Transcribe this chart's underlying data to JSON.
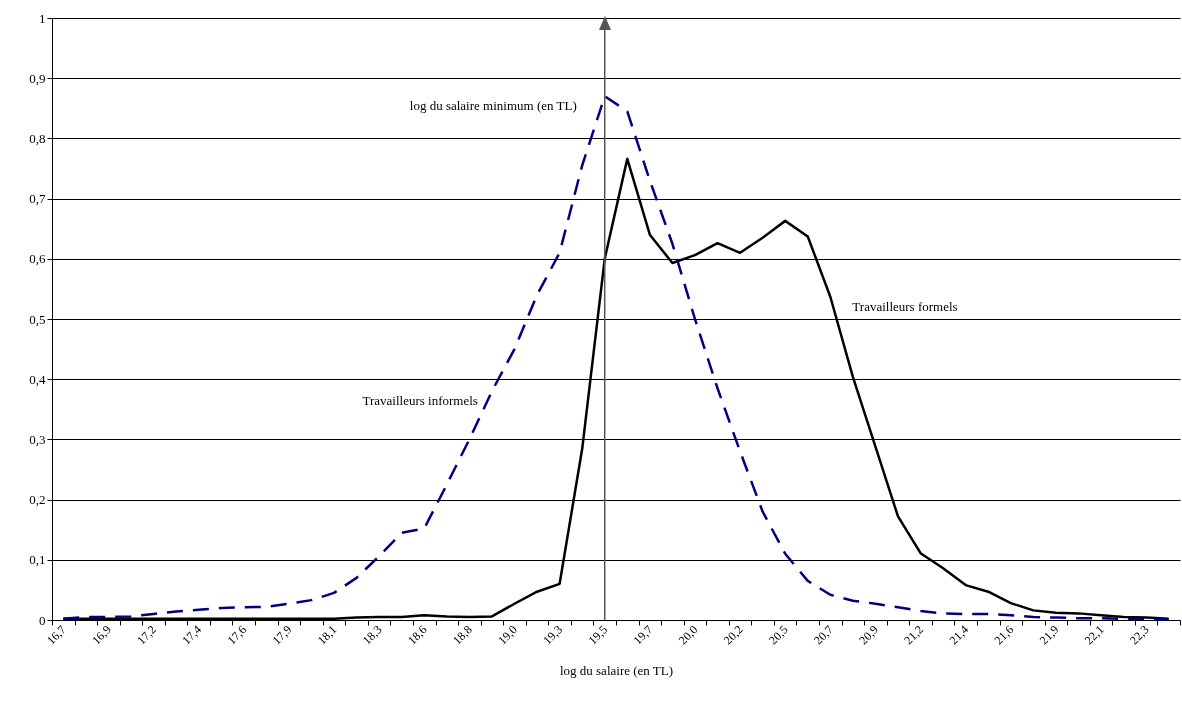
{
  "chart_data": {
    "type": "line",
    "xlabel": "log du salaire (en TL)",
    "categories": [
      "16,7",
      null,
      "16,9",
      null,
      "17,2",
      null,
      "17,4",
      null,
      "17,6",
      null,
      "17,9",
      null,
      "18,1",
      null,
      "18,3",
      null,
      "18,6",
      null,
      "18,8",
      null,
      "19,0",
      null,
      "19,3",
      null,
      "19,5",
      null,
      "19,7",
      null,
      "20,0",
      null,
      "20,2",
      null,
      "20,5",
      null,
      "20,7",
      null,
      "20,9",
      null,
      "21,2",
      null,
      "21,4",
      null,
      "21,6",
      null,
      "21,9",
      null,
      "22,1",
      null,
      "22,3",
      null
    ],
    "series": [
      {
        "name": "Travailleurs formels",
        "color": "#000000",
        "line_style": "solid",
        "values": [
          0.002,
          0.002,
          0.002,
          0.002,
          0.002,
          0.002,
          0.002,
          0.002,
          0.002,
          0.002,
          0.002,
          0.002,
          0.002,
          0.004,
          0.005,
          0.005,
          0.008,
          0.006,
          0.005,
          0.006,
          0.027,
          0.047,
          0.06,
          0.284,
          0.6,
          0.766,
          0.64,
          0.593,
          0.606,
          0.626,
          0.61,
          0.635,
          0.663,
          0.637,
          0.537,
          0.404,
          0.288,
          0.172,
          0.111,
          0.086,
          0.058,
          0.047,
          0.028,
          0.016,
          0.012,
          0.011,
          0.008,
          0.005,
          0.004,
          0.002
        ]
      },
      {
        "name": "Travailleurs informels",
        "color": "#000080",
        "line_style": "dashed",
        "values": [
          0.002,
          0.005,
          0.005,
          0.006,
          0.01,
          0.014,
          0.017,
          0.02,
          0.021,
          0.022,
          0.027,
          0.033,
          0.045,
          0.07,
          0.106,
          0.145,
          0.152,
          0.225,
          0.3,
          0.38,
          0.45,
          0.54,
          0.61,
          0.755,
          0.87,
          0.845,
          0.73,
          0.625,
          0.5,
          0.385,
          0.28,
          0.18,
          0.11,
          0.065,
          0.042,
          0.032,
          0.027,
          0.021,
          0.015,
          0.011,
          0.01,
          0.01,
          0.008,
          0.005,
          0.004,
          0.003,
          0.003,
          0.002,
          0.002,
          0.001
        ]
      }
    ],
    "ylim": [
      0,
      1
    ],
    "yticks": [
      0,
      {
        "value": 0.1,
        "label": "0,1"
      },
      {
        "value": 0.2,
        "label": "0,2"
      },
      {
        "value": 0.3,
        "label": "0,3"
      },
      {
        "value": 0.4,
        "label": "0,4"
      },
      {
        "value": 0.5,
        "label": "0,5"
      },
      {
        "value": 0.6,
        "label": "0,6"
      },
      {
        "value": 0.7,
        "label": "0,7"
      },
      {
        "value": 0.8,
        "label": "0,8"
      },
      {
        "value": 0.9,
        "label": "0,9"
      },
      1
    ],
    "grid": "y",
    "ref_lines": [
      {
        "axis": "x",
        "value": "19,5",
        "label": "log du salaire minimum (en TL)",
        "color": "#555555"
      }
    ]
  }
}
